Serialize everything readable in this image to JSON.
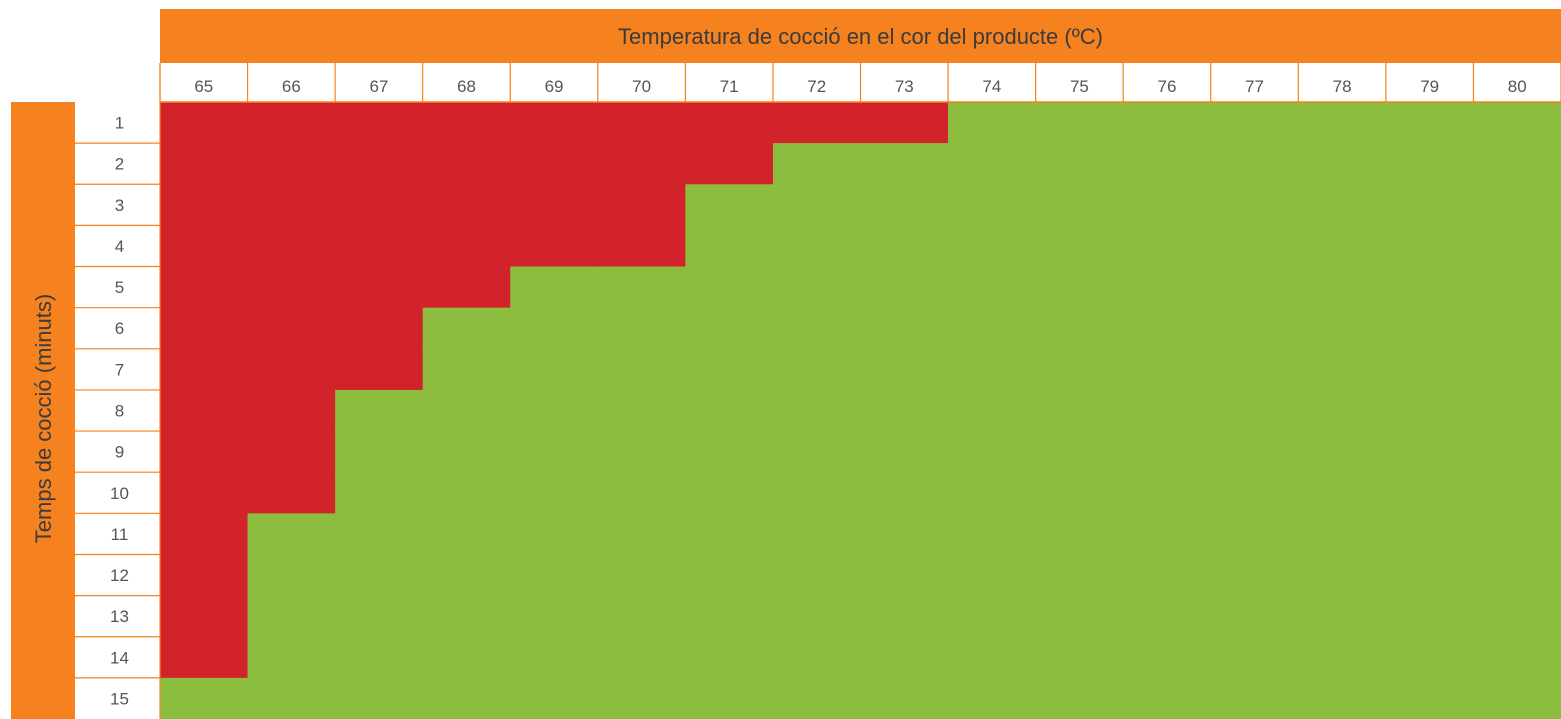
{
  "chart_data": {
    "type": "heatmap",
    "xlabel": "Temperatura de cocció en el cor del producte (ºC)",
    "ylabel": "Temps de cocció (minuts)",
    "x": [
      65,
      66,
      67,
      68,
      69,
      70,
      71,
      72,
      73,
      74,
      75,
      76,
      77,
      78,
      79,
      80
    ],
    "y": [
      1,
      2,
      3,
      4,
      5,
      6,
      7,
      8,
      9,
      10,
      11,
      12,
      13,
      14,
      15
    ],
    "min_safe_minutes": {
      "65": 15,
      "66": 11,
      "67": 8,
      "68": 6,
      "69": 5,
      "70": 5,
      "71": 3,
      "72": 2,
      "73": 2,
      "74": 1,
      "75": 1,
      "76": 1,
      "77": 1,
      "78": 1,
      "79": 1,
      "80": 1
    },
    "colors": {
      "header": "#f5821f",
      "unsafe": "#d2232a",
      "safe": "#8dbd3e",
      "grid": "#f5821f",
      "text": "#555555"
    }
  }
}
